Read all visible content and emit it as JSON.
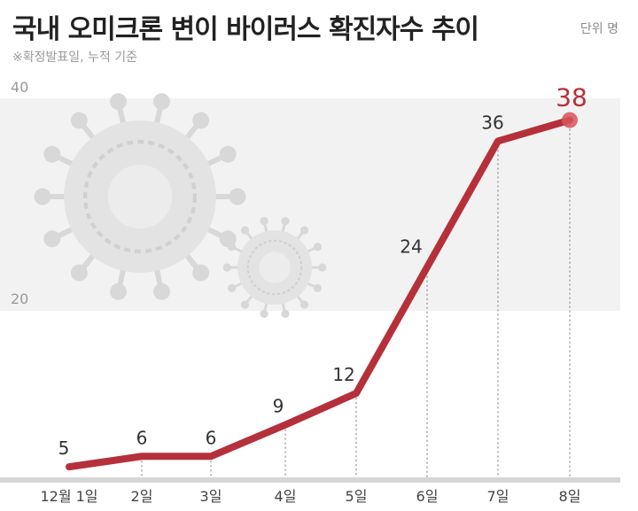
{
  "header": {
    "title": "국내 오미크론 변이 바이러스 확진자수 추이",
    "subtitle": "※확정발표일, 누적 기준",
    "unit": "단위 명"
  },
  "colors": {
    "line": "#b5303a",
    "highlight_point": "#d9545c",
    "band": "#f2f2f2",
    "baseline": "#d6d6d6",
    "virus": "#d8d8d8"
  },
  "chart_data": {
    "type": "line",
    "categories": [
      "12월 1일",
      "2일",
      "3일",
      "4일",
      "5일",
      "6일",
      "7일",
      "8일"
    ],
    "series": [
      {
        "values": [
          5,
          6,
          6,
          9,
          12,
          24,
          36,
          38
        ]
      }
    ],
    "data_labels": [
      "5",
      "6",
      "6",
      "9",
      "12",
      "24",
      "36",
      "38"
    ],
    "y_ticks": [
      {
        "value": 20,
        "label": "20"
      },
      {
        "value": 40,
        "label": "40"
      }
    ],
    "ylim": [
      4,
      41
    ],
    "grid": false,
    "highlight_last": true
  }
}
